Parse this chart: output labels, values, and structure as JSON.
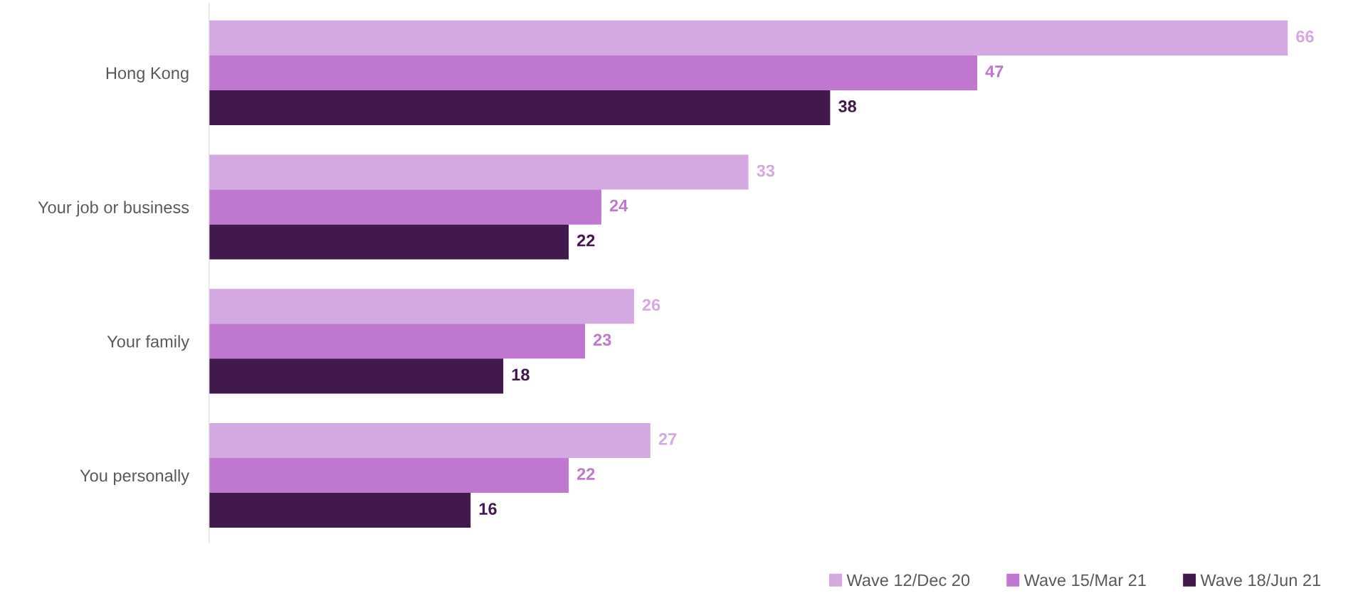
{
  "chart_data": {
    "type": "bar",
    "orientation": "horizontal",
    "categories": [
      "Hong Kong",
      "Your job or business",
      "Your family",
      "You personally"
    ],
    "series": [
      {
        "name": "Wave 12/Dec 20",
        "color": "#d4a8e0",
        "values": [
          66,
          33,
          26,
          27
        ]
      },
      {
        "name": "Wave 15/Mar 21",
        "color": "#bf77d0",
        "values": [
          47,
          24,
          23,
          22
        ]
      },
      {
        "name": "Wave 18/Jun 21",
        "color": "#42194d",
        "values": [
          38,
          22,
          18,
          16
        ]
      }
    ],
    "data_labels": true,
    "grid": false,
    "legend": "bottom right"
  }
}
